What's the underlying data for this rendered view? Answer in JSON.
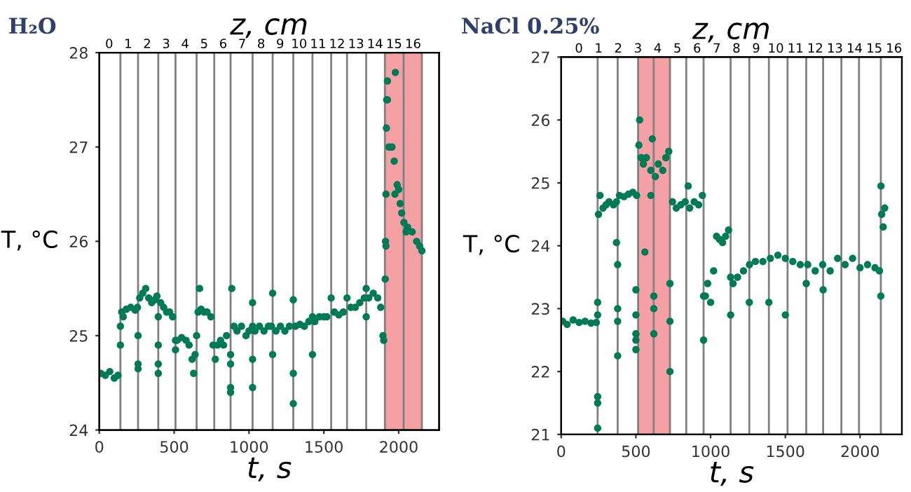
{
  "chart_data": [
    {
      "type": "scatter",
      "title": "H₂O",
      "xlabel": "t, s",
      "ylabel": "T, °C",
      "x2label": "z, cm",
      "marker": "circle",
      "grid": false,
      "legend": false,
      "xlim": [
        0,
        2270
      ],
      "xticks": [
        0,
        500,
        1000,
        1500,
        2000
      ],
      "ylim": [
        24,
        28
      ],
      "yticks": [
        24,
        25,
        26,
        27,
        28
      ],
      "x2lim": [
        -0.52,
        17.37
      ],
      "x2ticks": [
        0,
        1,
        2,
        3,
        4,
        5,
        6,
        7,
        8,
        9,
        10,
        11,
        12,
        13,
        14,
        15,
        16
      ],
      "bands": [
        {
          "axis": "x",
          "from": 1908,
          "to": 2155,
          "color": "#f4a0a4"
        }
      ],
      "ref_lines": [
        {
          "axis": "x",
          "value": 141,
          "color": "#808080"
        },
        {
          "axis": "x",
          "value": 259,
          "color": "#808080"
        },
        {
          "axis": "x",
          "value": 394,
          "color": "#808080"
        },
        {
          "axis": "x",
          "value": 509,
          "color": "#808080"
        },
        {
          "axis": "x",
          "value": 650,
          "color": "#808080"
        },
        {
          "axis": "x",
          "value": 768,
          "color": "#808080"
        },
        {
          "axis": "x",
          "value": 877,
          "color": "#808080"
        },
        {
          "axis": "x",
          "value": 1024,
          "color": "#808080"
        },
        {
          "axis": "x",
          "value": 1158,
          "color": "#808080"
        },
        {
          "axis": "x",
          "value": 1296,
          "color": "#808080"
        },
        {
          "axis": "x",
          "value": 1424,
          "color": "#808080"
        },
        {
          "axis": "x",
          "value": 1549,
          "color": "#808080"
        },
        {
          "axis": "x",
          "value": 1655,
          "color": "#808080"
        },
        {
          "axis": "x",
          "value": 1783,
          "color": "#808080"
        },
        {
          "axis": "x",
          "value": 1908,
          "color": "#808080"
        },
        {
          "axis": "x",
          "value": 2033,
          "color": "#808080"
        },
        {
          "axis": "x",
          "value": 2155,
          "color": "#808080"
        }
      ],
      "series": [
        {
          "color": "#007a55",
          "x": [
            10,
            40,
            70,
            100,
            125,
            141,
            141,
            150,
            160,
            180,
            210,
            240,
            255,
            259,
            259,
            259,
            270,
            290,
            310,
            330,
            350,
            370,
            385,
            394,
            394,
            394,
            394,
            410,
            430,
            450,
            470,
            490,
            509,
            509,
            520,
            550,
            580,
            600,
            620,
            630,
            640,
            650,
            660,
            670,
            680,
            700,
            720,
            745,
            760,
            775,
            790,
            810,
            830,
            850,
            877,
            885,
            877,
            877,
            877,
            900,
            920,
            950,
            980,
            1000,
            1024,
            1024,
            1024,
            1024,
            1040,
            1070,
            1100,
            1130,
            1150,
            1158,
            1158,
            1180,
            1210,
            1240,
            1270,
            1296,
            1296,
            1296,
            1310,
            1340,
            1370,
            1400,
            1424,
            1424,
            1440,
            1470,
            1500,
            1520,
            1549,
            1570,
            1600,
            1630,
            1655,
            1680,
            1710,
            1740,
            1770,
            1783,
            1783,
            1800,
            1830,
            1860,
            1880,
            1895,
            1900,
            1910,
            1915,
            1912,
            1915,
            1918,
            1920,
            1925,
            1925,
            1935,
            1955,
            1970,
            1978,
            1990,
            1975,
            2000,
            2010,
            2020,
            2035,
            2050,
            2060,
            2090,
            2120,
            2140,
            2155
          ],
          "values": [
            24.6,
            24.58,
            24.62,
            24.55,
            24.58,
            24.9,
            25.1,
            25.25,
            25.2,
            25.28,
            25.3,
            25.27,
            25.3,
            24.65,
            24.7,
            25.0,
            25.4,
            25.45,
            25.5,
            25.4,
            25.35,
            25.38,
            25.42,
            25.2,
            24.9,
            24.7,
            24.6,
            25.35,
            25.3,
            25.25,
            25.25,
            25.2,
            24.85,
            24.95,
            24.95,
            24.98,
            24.95,
            24.9,
            24.75,
            24.6,
            24.8,
            25.0,
            25.25,
            25.5,
            25.28,
            25.25,
            25.25,
            25.2,
            24.9,
            24.75,
            24.9,
            24.95,
            24.9,
            25.0,
            24.4,
            25.5,
            24.45,
            24.7,
            24.8,
            25.1,
            25.05,
            25.1,
            25.0,
            25.05,
            25.35,
            24.45,
            24.75,
            25.1,
            25.05,
            25.1,
            25.05,
            25.1,
            25.1,
            25.45,
            24.8,
            25.05,
            25.1,
            25.05,
            25.1,
            25.38,
            24.28,
            24.6,
            25.1,
            25.12,
            25.1,
            25.15,
            25.2,
            24.8,
            25.15,
            25.2,
            25.2,
            25.2,
            25.4,
            25.25,
            25.22,
            25.25,
            25.4,
            25.3,
            25.3,
            25.35,
            25.4,
            25.5,
            25.2,
            25.4,
            25.45,
            25.4,
            25.3,
            25.0,
            24.95,
            25.6,
            25.95,
            26.0,
            26.5,
            27.2,
            27.5,
            27.7,
            27.5,
            27.0,
            27.0,
            26.85,
            27.79,
            26.6,
            26.5,
            26.55,
            26.4,
            26.3,
            26.2,
            26.1,
            26.15,
            26.1,
            26.0,
            25.95,
            25.9
          ]
        }
      ]
    },
    {
      "type": "scatter",
      "title": "NaCl 0.25%",
      "xlabel": "t, s",
      "ylabel": "T, °C",
      "x2label": "z, cm",
      "marker": "circle",
      "grid": false,
      "legend": false,
      "xlim": [
        0,
        2280
      ],
      "xticks": [
        0,
        500,
        1000,
        1500,
        2000
      ],
      "ylim": [
        21,
        27
      ],
      "yticks": [
        21,
        22,
        23,
        24,
        25,
        26,
        27
      ],
      "x2lim": [
        -0.9,
        16.4
      ],
      "x2ticks": [
        0,
        1,
        2,
        3,
        4,
        5,
        6,
        7,
        8,
        9,
        10,
        11,
        12,
        13,
        14,
        15,
        16
      ],
      "bands": [
        {
          "axis": "x",
          "from": 515,
          "to": 728,
          "color": "#f4a0a4"
        }
      ],
      "ref_lines": [
        {
          "axis": "x",
          "value": 244,
          "color": "#808080"
        },
        {
          "axis": "x",
          "value": 378,
          "color": "#808080"
        },
        {
          "axis": "x",
          "value": 515,
          "color": "#808080"
        },
        {
          "axis": "x",
          "value": 619,
          "color": "#808080"
        },
        {
          "axis": "x",
          "value": 728,
          "color": "#808080"
        },
        {
          "axis": "x",
          "value": 837,
          "color": "#808080"
        },
        {
          "axis": "x",
          "value": 953,
          "color": "#808080"
        },
        {
          "axis": "x",
          "value": 1134,
          "color": "#808080"
        },
        {
          "axis": "x",
          "value": 1259,
          "color": "#808080"
        },
        {
          "axis": "x",
          "value": 1390,
          "color": "#808080"
        },
        {
          "axis": "x",
          "value": 1515,
          "color": "#808080"
        },
        {
          "axis": "x",
          "value": 1640,
          "color": "#808080"
        },
        {
          "axis": "x",
          "value": 1753,
          "color": "#808080"
        },
        {
          "axis": "x",
          "value": 1875,
          "color": "#808080"
        },
        {
          "axis": "x",
          "value": 1993,
          "color": "#808080"
        },
        {
          "axis": "x",
          "value": 2139,
          "color": "#808080"
        }
      ],
      "series": [
        {
          "color": "#007a55",
          "x": [
            10,
            40,
            80,
            120,
            160,
            200,
            235,
            244,
            244,
            244,
            244,
            244,
            250,
            260,
            280,
            300,
            320,
            350,
            370,
            370,
            378,
            378,
            378,
            378,
            390,
            420,
            450,
            480,
            505,
            500,
            500,
            500,
            500,
            500,
            520,
            525,
            535,
            550,
            570,
            600,
            610,
            560,
            600,
            620,
            620,
            620,
            630,
            650,
            680,
            700,
            720,
            728,
            728,
            728,
            745,
            770,
            800,
            830,
            850,
            860,
            890,
            920,
            945,
            953,
            953,
            965,
            980,
            1000,
            1020,
            1040,
            1060,
            1080,
            1100,
            1120,
            1134,
            1134,
            1150,
            1180,
            1220,
            1260,
            1300,
            1350,
            1400,
            1450,
            1500,
            1550,
            1600,
            1650,
            1700,
            1750,
            1800,
            1850,
            1900,
            1950,
            2000,
            2050,
            2100,
            2130,
            1259,
            1390,
            1500,
            1640,
            1753,
            2139,
            2140,
            2145,
            2155,
            2165
          ],
          "values": [
            22.8,
            22.75,
            22.82,
            22.78,
            22.8,
            22.77,
            22.78,
            21.1,
            21.5,
            21.6,
            22.9,
            23.1,
            24.5,
            24.8,
            24.6,
            24.65,
            24.7,
            24.65,
            24.7,
            24.05,
            23.0,
            22.8,
            22.25,
            23.7,
            24.8,
            24.78,
            24.82,
            24.85,
            24.8,
            22.9,
            22.6,
            22.35,
            22.5,
            23.3,
            25.6,
            26.0,
            25.4,
            25.3,
            25.4,
            25.2,
            25.7,
            23.9,
            24.8,
            23.2,
            23.0,
            22.6,
            25.1,
            25.3,
            25.2,
            25.4,
            25.5,
            23.4,
            22.8,
            22.0,
            24.7,
            24.6,
            24.65,
            24.7,
            24.95,
            24.6,
            24.7,
            24.65,
            24.8,
            23.2,
            22.5,
            23.2,
            23.4,
            23.1,
            23.6,
            24.15,
            24.1,
            24.05,
            24.15,
            24.25,
            22.9,
            23.5,
            23.4,
            23.5,
            23.6,
            23.7,
            23.75,
            23.75,
            23.8,
            23.85,
            23.8,
            23.75,
            23.7,
            23.7,
            23.6,
            23.7,
            23.6,
            23.8,
            23.7,
            23.8,
            23.65,
            23.7,
            23.65,
            23.6,
            23.1,
            23.1,
            22.9,
            23.4,
            23.3,
            23.2,
            24.95,
            24.5,
            24.3,
            24.6
          ]
        }
      ]
    }
  ]
}
